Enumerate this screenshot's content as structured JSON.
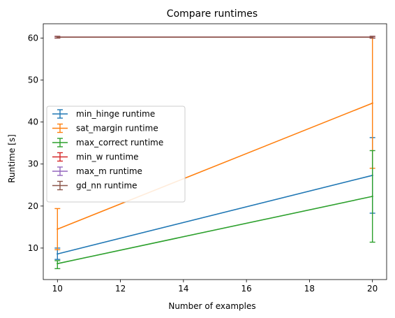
{
  "chart_data": {
    "type": "line",
    "title": "Compare runtimes",
    "xlabel": "Number of examples",
    "ylabel": "Runtime [s]",
    "xlim": [
      9.55,
      20.45
    ],
    "ylim": [
      2.5,
      63.4
    ],
    "x_ticks": [
      10,
      12,
      14,
      16,
      18,
      20
    ],
    "y_ticks": [
      10,
      20,
      30,
      40,
      50,
      60
    ],
    "grid": false,
    "legend_position": "center-left",
    "x": [
      10,
      20
    ],
    "series": [
      {
        "name": "min_hinge runtime",
        "color": "#1f77b4",
        "values": [
          8.6,
          27.3
        ],
        "err_low": [
          7.3,
          18.3
        ],
        "err_high": [
          10.0,
          36.3
        ]
      },
      {
        "name": "sat_margin runtime",
        "color": "#ff7f0e",
        "values": [
          14.5,
          44.5
        ],
        "err_low": [
          9.6,
          29.0
        ],
        "err_high": [
          19.4,
          60.0
        ]
      },
      {
        "name": "max_correct runtime",
        "color": "#2ca02c",
        "values": [
          6.3,
          22.3
        ],
        "err_low": [
          5.1,
          11.4
        ],
        "err_high": [
          7.0,
          33.2
        ]
      },
      {
        "name": "min_w runtime",
        "color": "#d62728",
        "values": [
          60.2,
          60.2
        ],
        "err_low": [
          60.0,
          60.0
        ],
        "err_high": [
          60.4,
          60.4
        ]
      },
      {
        "name": "max_m runtime",
        "color": "#9467bd",
        "values": [
          60.2,
          60.2
        ],
        "err_low": [
          60.0,
          60.0
        ],
        "err_high": [
          60.4,
          60.4
        ]
      },
      {
        "name": "gd_nn runtime",
        "color": "#8c564b",
        "values": [
          60.2,
          60.2
        ],
        "err_low": [
          60.0,
          60.0
        ],
        "err_high": [
          60.4,
          60.4
        ]
      }
    ]
  }
}
